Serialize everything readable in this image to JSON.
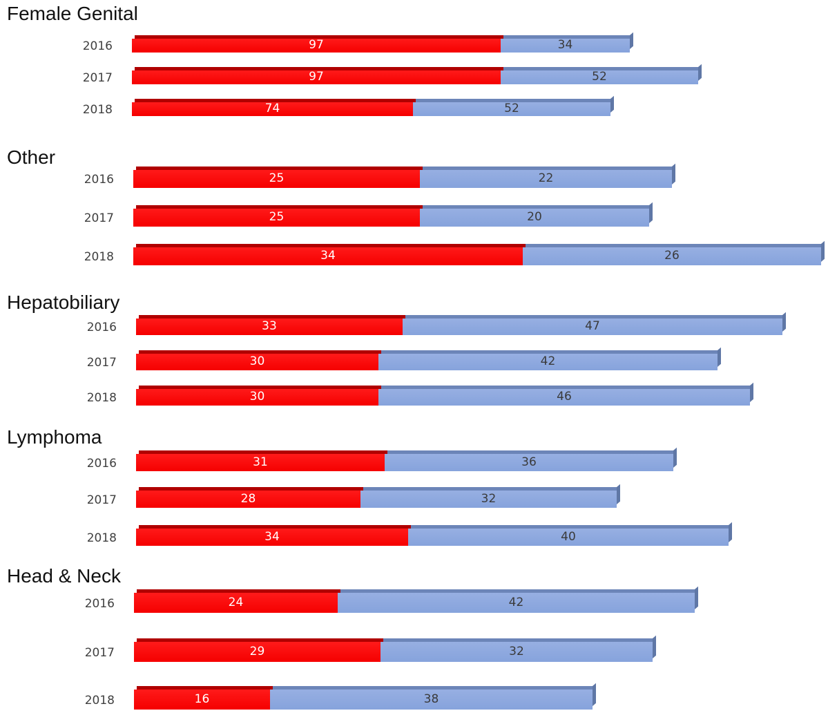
{
  "chart_data": {
    "type": "bar",
    "orientation": "horizontal",
    "stacked": true,
    "colors": {
      "series_1": "#ff0000",
      "series_2": "#8eaadc"
    },
    "groups": [
      {
        "title": "Female Genital",
        "bars": [
          {
            "year": "2016",
            "values": [
              97,
              34
            ]
          },
          {
            "year": "2017",
            "values": [
              97,
              52
            ]
          },
          {
            "year": "2018",
            "values": [
              74,
              52
            ]
          }
        ]
      },
      {
        "title": "Other",
        "bars": [
          {
            "year": "2016",
            "values": [
              25,
              22
            ]
          },
          {
            "year": "2017",
            "values": [
              25,
              20
            ]
          },
          {
            "year": "2018",
            "values": [
              34,
              26
            ]
          }
        ]
      },
      {
        "title": "Hepatobiliary",
        "bars": [
          {
            "year": "2016",
            "values": [
              33,
              47
            ]
          },
          {
            "year": "2017",
            "values": [
              30,
              42
            ]
          },
          {
            "year": "2018",
            "values": [
              30,
              46
            ]
          }
        ]
      },
      {
        "title": "Lymphoma",
        "bars": [
          {
            "year": "2016",
            "values": [
              31,
              36
            ]
          },
          {
            "year": "2017",
            "values": [
              28,
              32
            ]
          },
          {
            "year": "2018",
            "values": [
              34,
              40
            ]
          }
        ]
      },
      {
        "title": "Head & Neck",
        "bars": [
          {
            "year": "2016",
            "values": [
              24,
              42
            ]
          },
          {
            "year": "2017",
            "values": [
              29,
              32
            ]
          },
          {
            "year": "2018",
            "values": [
              16,
              38
            ]
          }
        ]
      }
    ]
  }
}
